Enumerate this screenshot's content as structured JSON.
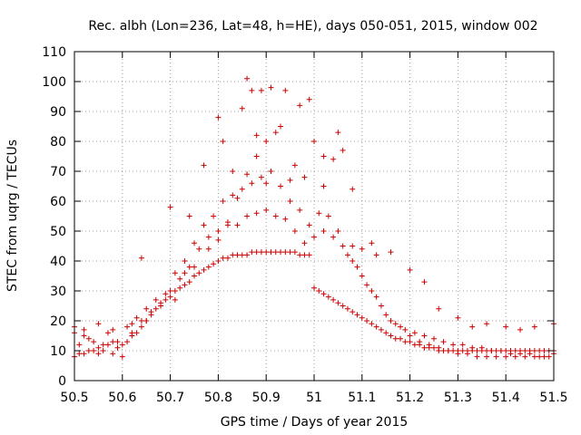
{
  "chart_data": {
    "type": "scatter",
    "title": "Rec. albh (Lon=236, Lat=48, h=HE), days 050-051, 2015, window 002",
    "xlabel": "GPS time / Days of year 2015",
    "ylabel": "STEC from uqrg / TECUs",
    "xlim": [
      50.5,
      51.5
    ],
    "ylim": [
      0,
      110
    ],
    "xticks": [
      "50.5",
      "50.6",
      "50.7",
      "50.8",
      "50.9",
      "51",
      "51.1",
      "51.2",
      "51.3",
      "51.4",
      "51.5"
    ],
    "yticks": [
      "0",
      "10",
      "20",
      "30",
      "40",
      "50",
      "60",
      "70",
      "80",
      "90",
      "100",
      "110"
    ],
    "marker": "+",
    "series": [
      {
        "name": "STEC",
        "color": "#cc0000",
        "x": [
          50.5,
          50.51,
          50.52,
          50.53,
          50.54,
          50.55,
          50.56,
          50.57,
          50.58,
          50.59,
          50.6,
          50.61,
          50.62,
          50.63,
          50.64,
          50.65,
          50.66,
          50.67,
          50.68,
          50.69,
          50.7,
          50.71,
          50.72,
          50.73,
          50.74,
          50.75,
          50.76,
          50.77,
          50.78,
          50.79,
          50.8,
          50.81,
          50.82,
          50.83,
          50.84,
          50.85,
          50.86,
          50.87,
          50.88,
          50.89,
          50.9,
          50.91,
          50.92,
          50.93,
          50.94,
          50.95,
          50.96,
          50.97,
          50.98,
          50.99,
          51.0,
          51.01,
          51.02,
          51.03,
          51.04,
          51.05,
          51.06,
          51.07,
          51.08,
          51.09,
          51.1,
          51.11,
          51.12,
          51.13,
          51.14,
          51.15,
          51.16,
          51.17,
          51.18,
          51.19,
          51.2,
          51.21,
          51.22,
          51.23,
          51.24,
          51.25,
          51.26,
          51.27,
          51.28,
          51.29,
          51.3,
          51.31,
          51.32,
          51.33,
          51.34,
          51.35,
          51.36,
          51.37,
          51.38,
          51.39,
          51.4,
          51.41,
          51.42,
          51.43,
          51.44,
          51.45,
          51.46,
          51.47,
          51.48,
          51.49,
          51.5,
          50.5,
          50.52,
          50.54,
          50.56,
          50.58,
          50.6,
          50.62,
          50.64,
          50.66,
          50.68,
          50.7,
          50.72,
          50.74,
          50.76,
          50.78,
          50.8,
          50.82,
          50.84,
          50.86,
          50.88,
          50.9,
          50.92,
          50.94,
          50.96,
          50.98,
          51.0,
          51.02,
          51.04,
          51.06,
          51.08,
          51.1,
          51.12,
          51.14,
          51.16,
          51.18,
          51.2,
          51.22,
          51.24,
          51.26,
          51.28,
          51.3,
          51.32,
          51.34,
          51.36,
          51.38,
          51.4,
          51.42,
          51.44,
          51.46,
          51.48,
          51.5,
          50.51,
          50.53,
          50.55,
          50.57,
          50.59,
          50.61,
          50.63,
          50.65,
          50.67,
          50.69,
          50.71,
          50.73,
          50.75,
          50.77,
          50.79,
          50.81,
          50.83,
          50.85,
          50.87,
          50.89,
          50.91,
          50.93,
          50.95,
          50.97,
          50.99,
          51.01,
          51.03,
          51.05,
          51.07,
          51.09,
          51.11,
          51.13,
          51.15,
          51.17,
          51.19,
          51.21,
          51.23,
          51.25,
          51.27,
          51.29,
          51.31,
          51.33,
          51.35,
          51.37,
          51.39,
          51.41,
          51.43,
          51.45,
          51.47,
          51.49,
          50.5,
          50.52,
          50.55,
          50.58,
          50.62,
          50.65,
          50.68,
          50.71,
          50.73,
          50.75,
          50.78,
          50.8,
          50.82,
          50.84,
          50.86,
          50.88,
          50.9,
          50.92,
          50.94,
          50.96,
          50.98,
          51.0,
          51.02,
          51.04,
          51.06,
          51.08,
          51.1,
          51.13,
          51.16,
          51.2,
          51.23,
          51.26,
          51.3,
          51.33,
          51.36,
          51.4,
          51.43,
          51.46,
          51.5,
          50.64,
          50.7,
          50.74,
          50.77,
          50.8,
          50.81,
          50.83,
          50.85,
          50.86,
          50.87,
          50.88,
          50.89,
          50.9,
          50.91,
          50.93,
          50.95,
          50.97,
          50.99,
          51.02,
          51.05,
          51.08,
          51.12
        ],
        "y": [
          8,
          9,
          9,
          10,
          10,
          11,
          12,
          12,
          13,
          13,
          12,
          13,
          15,
          16,
          18,
          20,
          22,
          24,
          26,
          27,
          28,
          30,
          31,
          32,
          33,
          35,
          36,
          37,
          38,
          39,
          40,
          41,
          41,
          42,
          42,
          42,
          42,
          43,
          43,
          43,
          43,
          43,
          43,
          43,
          43,
          43,
          43,
          42,
          42,
          42,
          31,
          30,
          29,
          28,
          27,
          26,
          25,
          24,
          23,
          22,
          21,
          20,
          19,
          18,
          17,
          16,
          15,
          14,
          14,
          13,
          13,
          12,
          12,
          11,
          11,
          11,
          10,
          10,
          10,
          10,
          10,
          10,
          10,
          10,
          10,
          10,
          10,
          10,
          10,
          10,
          10,
          10,
          10,
          10,
          10,
          10,
          10,
          10,
          10,
          10,
          10,
          16,
          15,
          13,
          10,
          9,
          8,
          16,
          20,
          23,
          25,
          30,
          34,
          38,
          44,
          48,
          50,
          52,
          52,
          55,
          56,
          57,
          55,
          54,
          50,
          46,
          48,
          50,
          48,
          45,
          40,
          35,
          30,
          25,
          20,
          18,
          15,
          13,
          12,
          11,
          10,
          9,
          9,
          8,
          8,
          8,
          8,
          8,
          8,
          8,
          8,
          9,
          12,
          14,
          9,
          16,
          11,
          18,
          21,
          24,
          27,
          29,
          36,
          40,
          46,
          52,
          55,
          60,
          62,
          64,
          66,
          68,
          70,
          65,
          60,
          57,
          52,
          56,
          55,
          50,
          42,
          38,
          32,
          28,
          22,
          19,
          17,
          16,
          15,
          14,
          13,
          12,
          12,
          11,
          11,
          10,
          10,
          9,
          9,
          9,
          8,
          8,
          18,
          17,
          19,
          17,
          19,
          20,
          25,
          27,
          36,
          38,
          44,
          47,
          53,
          61,
          69,
          75,
          80,
          83,
          97,
          72,
          68,
          80,
          75,
          74,
          77,
          45,
          44,
          42,
          43,
          37,
          33,
          24,
          21,
          18,
          19,
          18,
          17,
          18,
          19,
          41,
          58,
          55,
          72,
          88,
          80,
          70,
          91,
          101,
          97,
          82,
          97,
          66,
          98,
          85,
          67,
          92,
          94,
          65,
          83,
          64,
          46
        ]
      }
    ]
  }
}
